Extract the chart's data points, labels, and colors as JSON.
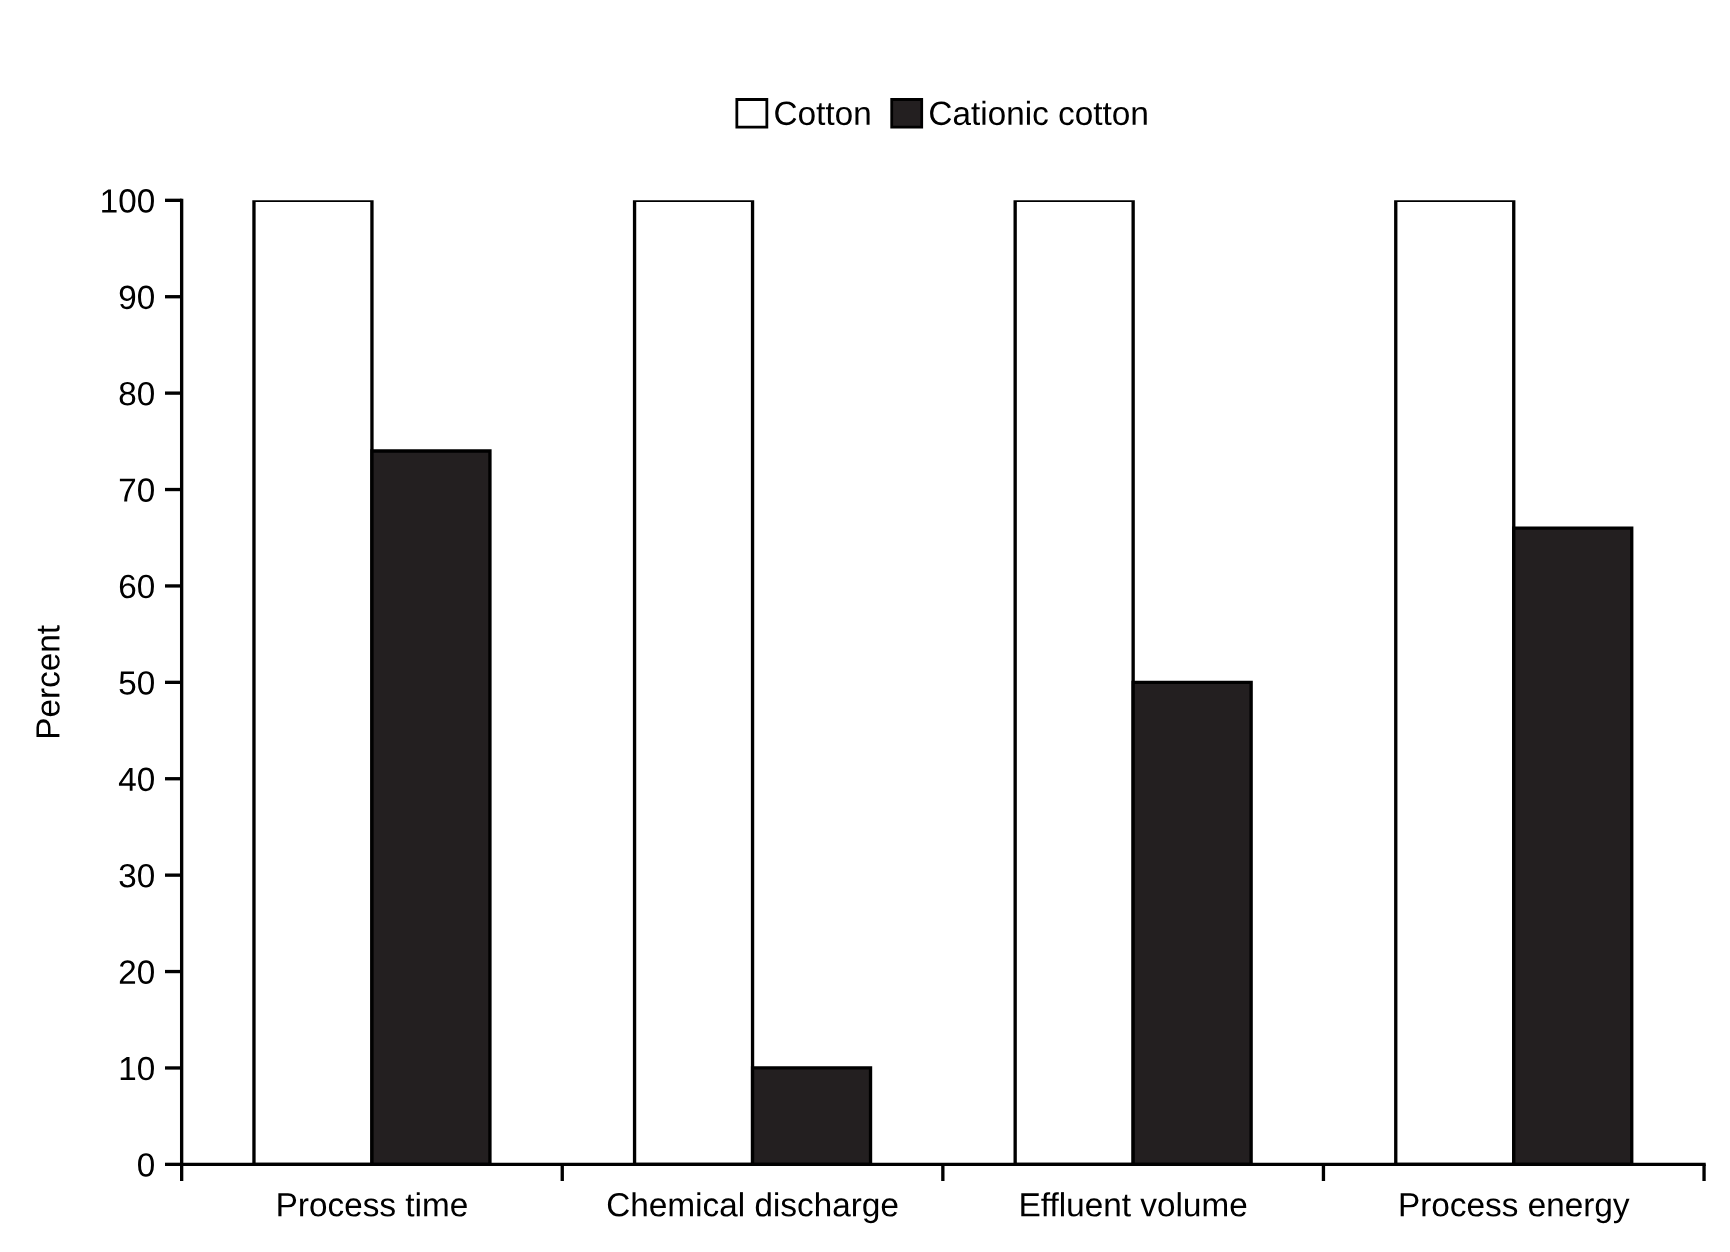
{
  "chart_data": {
    "type": "bar",
    "ylabel": "Percent",
    "categories": [
      "Process time",
      "Chemical discharge",
      "Effluent volume",
      "Process energy"
    ],
    "series": [
      {
        "name": "Cotton",
        "color": "#ffffff",
        "values": [
          100,
          100,
          100,
          100
        ]
      },
      {
        "name": "Cationic cotton",
        "color": "#231f20",
        "values": [
          74,
          10,
          50,
          66
        ]
      }
    ],
    "ylim": [
      0,
      100
    ],
    "yticks": [
      0,
      10,
      20,
      30,
      40,
      50,
      60,
      70,
      80,
      90,
      100
    ],
    "grid": false,
    "legend": "top"
  }
}
